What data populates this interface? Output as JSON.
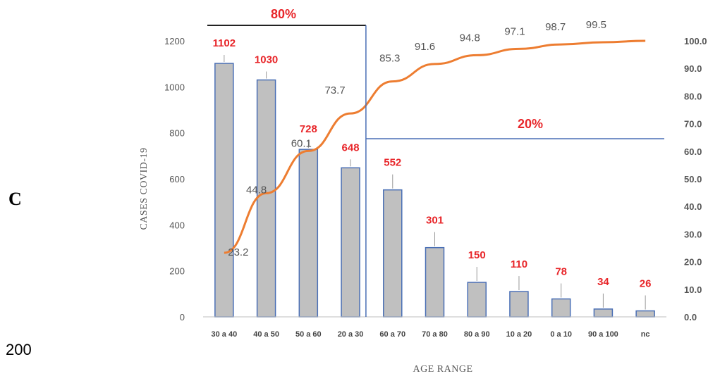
{
  "panel_letter": "C",
  "page_number": "200",
  "chart_data": {
    "type": "bar",
    "categories": [
      "30 a 40",
      "40 a 50",
      "50 a 60",
      "20 a 30",
      "60 a 70",
      "70 a 80",
      "80 a 90",
      "10 a 20",
      "0 a 10",
      "90 a 100",
      "nc"
    ],
    "values": [
      1102,
      1030,
      728,
      648,
      552,
      301,
      150,
      110,
      78,
      34,
      26
    ],
    "value_labels": [
      "1102",
      "1030",
      "728",
      "648",
      "552",
      "301",
      "150",
      "110",
      "78",
      "34",
      "26"
    ],
    "cumulative": [
      23.2,
      44.8,
      60.1,
      73.7,
      85.3,
      91.6,
      94.8,
      97.1,
      98.7,
      99.5,
      100.0
    ],
    "cumulative_labels": [
      "23.2",
      "44.8",
      "60.1",
      "73.7",
      "85.3",
      "91.6",
      "94.8",
      "97.1",
      "98.7",
      "99.5",
      ""
    ],
    "xlabel": "AGE RANGE",
    "ylabel": "CASES COVID-19",
    "ylim": [
      0,
      1200
    ],
    "yticks": [
      "0",
      "200",
      "400",
      "600",
      "800",
      "1000",
      "1200"
    ],
    "y2lim": [
      0,
      100
    ],
    "y2ticks": [
      "0.0",
      "10.0",
      "20.0",
      "30.0",
      "40.0",
      "50.0",
      "60.0",
      "70.0",
      "80.0",
      "90.0",
      "100.0"
    ],
    "annotation_80": "80%",
    "annotation_20": "20%",
    "split_after_category": 4,
    "grid": false,
    "colors": {
      "bar_fill": "#c0c0c0",
      "bar_stroke": "#4a6fb5",
      "line": "#ed7d31",
      "label": "#e8262a",
      "divider": "#4a6fb5"
    }
  }
}
